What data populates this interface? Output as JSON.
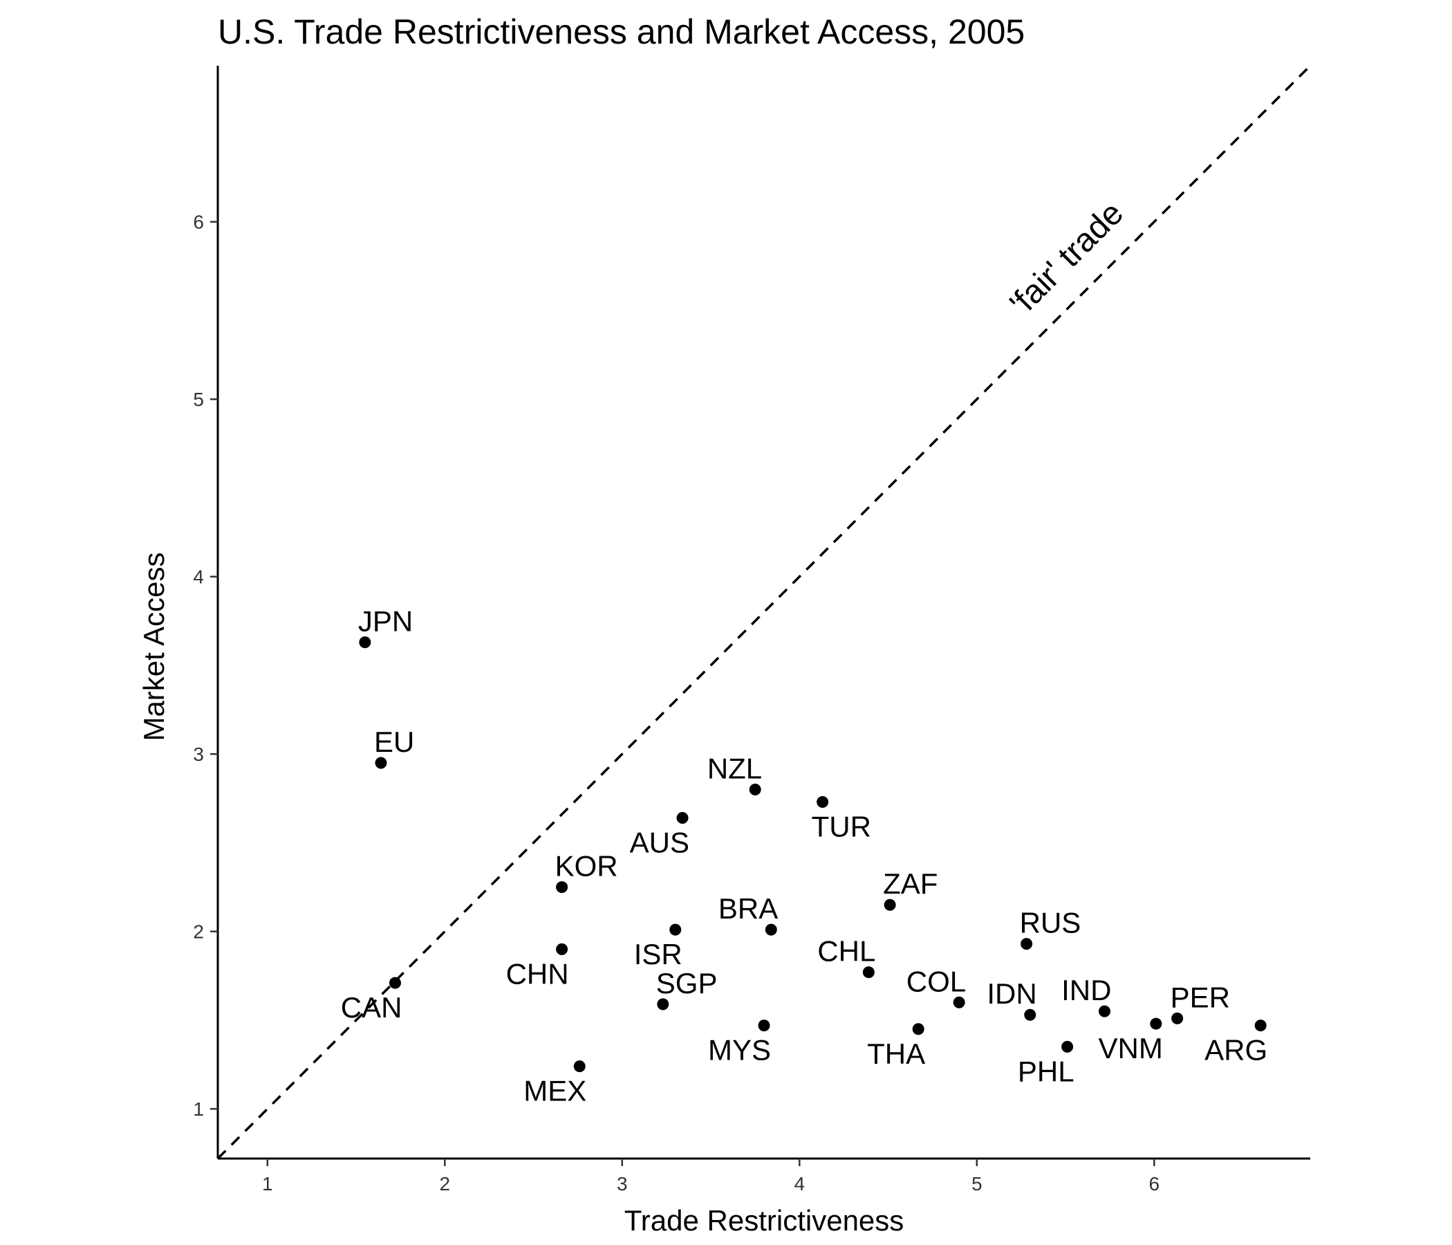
{
  "chart_data": {
    "type": "scatter",
    "title": "U.S. Trade Restrictiveness and Market Access, 2005",
    "xlabel": "Trade Restrictiveness",
    "ylabel": "Market Access",
    "xlim": [
      0.72,
      6.88
    ],
    "ylim": [
      0.72,
      6.88
    ],
    "xticks": [
      1,
      2,
      3,
      4,
      5,
      6
    ],
    "yticks": [
      1,
      2,
      3,
      4,
      5,
      6
    ],
    "grid": false,
    "legend": "none",
    "reference_line": {
      "slope": 1,
      "intercept": 0,
      "style": "dashed",
      "label": "'fair' trade",
      "label_x": 5.55,
      "label_y": 5.75
    },
    "points": [
      {
        "label": "JPN",
        "x": 1.55,
        "y": 3.63,
        "label_pos": "above-right"
      },
      {
        "label": "EU",
        "x": 1.64,
        "y": 2.95,
        "label_pos": "above-right"
      },
      {
        "label": "CAN",
        "x": 1.72,
        "y": 1.71,
        "label_pos": "below-left"
      },
      {
        "label": "KOR",
        "x": 2.66,
        "y": 2.25,
        "label_pos": "above-right"
      },
      {
        "label": "CHN",
        "x": 2.66,
        "y": 1.9,
        "label_pos": "below-left"
      },
      {
        "label": "MEX",
        "x": 2.76,
        "y": 1.24,
        "label_pos": "below-left"
      },
      {
        "label": "AUS",
        "x": 3.34,
        "y": 2.64,
        "label_pos": "below-left"
      },
      {
        "label": "ISR",
        "x": 3.3,
        "y": 2.01,
        "label_pos": "below-left"
      },
      {
        "label": "SGP",
        "x": 3.23,
        "y": 1.59,
        "label_pos": "above-right"
      },
      {
        "label": "NZL",
        "x": 3.75,
        "y": 2.8,
        "label_pos": "above-left"
      },
      {
        "label": "BRA",
        "x": 3.84,
        "y": 2.01,
        "label_pos": "above-left"
      },
      {
        "label": "MYS",
        "x": 3.8,
        "y": 1.47,
        "label_pos": "below-left"
      },
      {
        "label": "TUR",
        "x": 4.13,
        "y": 2.73,
        "label_pos": "below-right"
      },
      {
        "label": "CHL",
        "x": 4.39,
        "y": 1.77,
        "label_pos": "above-left"
      },
      {
        "label": "ZAF",
        "x": 4.51,
        "y": 2.15,
        "label_pos": "above-right"
      },
      {
        "label": "THA",
        "x": 4.67,
        "y": 1.45,
        "label_pos": "below-left"
      },
      {
        "label": "COL",
        "x": 4.9,
        "y": 1.6,
        "label_pos": "above-left"
      },
      {
        "label": "RUS",
        "x": 5.28,
        "y": 1.93,
        "label_pos": "above-right"
      },
      {
        "label": "IDN",
        "x": 5.3,
        "y": 1.53,
        "label_pos": "above-left"
      },
      {
        "label": "PHL",
        "x": 5.51,
        "y": 1.35,
        "label_pos": "below-left"
      },
      {
        "label": "IND",
        "x": 5.72,
        "y": 1.55,
        "label_pos": "above-left"
      },
      {
        "label": "VNM",
        "x": 6.01,
        "y": 1.48,
        "label_pos": "below-left"
      },
      {
        "label": "PER",
        "x": 6.13,
        "y": 1.51,
        "label_pos": "above-right"
      },
      {
        "label": "ARG",
        "x": 6.6,
        "y": 1.47,
        "label_pos": "below-left"
      }
    ]
  }
}
